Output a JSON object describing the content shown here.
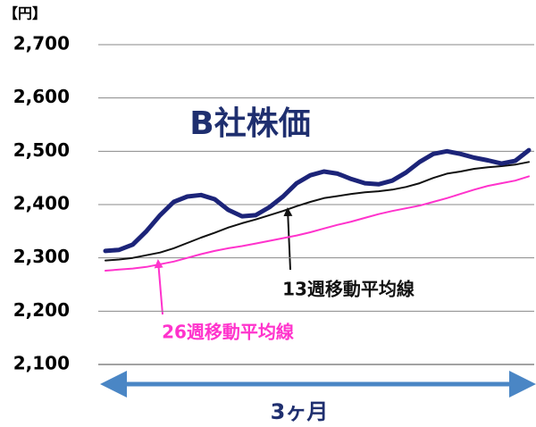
{
  "chart_data": {
    "type": "line",
    "title": "B社株価",
    "y_label": "【円】",
    "x_label": "3ヶ月",
    "ylim": [
      2100,
      2700
    ],
    "yticks": [
      {
        "value": 2100,
        "label": "2,100"
      },
      {
        "value": 2200,
        "label": "2,200"
      },
      {
        "value": 2300,
        "label": "2,300"
      },
      {
        "value": 2400,
        "label": "2,400"
      },
      {
        "value": 2500,
        "label": "2,500"
      },
      {
        "value": 2600,
        "label": "2,600"
      },
      {
        "value": 2700,
        "label": "2,700"
      }
    ],
    "grid": true,
    "series": [
      {
        "name": "B社株価",
        "color": "#1c2479",
        "width": 5,
        "values": [
          2313,
          2315,
          2325,
          2350,
          2380,
          2405,
          2415,
          2418,
          2410,
          2390,
          2378,
          2380,
          2395,
          2415,
          2440,
          2455,
          2462,
          2458,
          2448,
          2440,
          2438,
          2445,
          2460,
          2480,
          2495,
          2500,
          2495,
          2488,
          2483,
          2477,
          2482,
          2502
        ]
      },
      {
        "name": "13週移動平均線",
        "color": "#111111",
        "width": 2,
        "values": [
          2295,
          2297,
          2300,
          2305,
          2310,
          2318,
          2328,
          2338,
          2347,
          2357,
          2365,
          2372,
          2380,
          2388,
          2397,
          2405,
          2412,
          2416,
          2420,
          2423,
          2425,
          2428,
          2433,
          2440,
          2450,
          2458,
          2462,
          2467,
          2470,
          2472,
          2475,
          2480
        ]
      },
      {
        "name": "26週移動平均線",
        "color": "#ff33cc",
        "width": 2,
        "values": [
          2276,
          2278,
          2280,
          2283,
          2288,
          2293,
          2300,
          2307,
          2313,
          2318,
          2322,
          2327,
          2332,
          2337,
          2342,
          2348,
          2355,
          2362,
          2368,
          2375,
          2382,
          2388,
          2393,
          2398,
          2405,
          2412,
          2420,
          2428,
          2435,
          2440,
          2445,
          2453
        ]
      }
    ]
  }
}
